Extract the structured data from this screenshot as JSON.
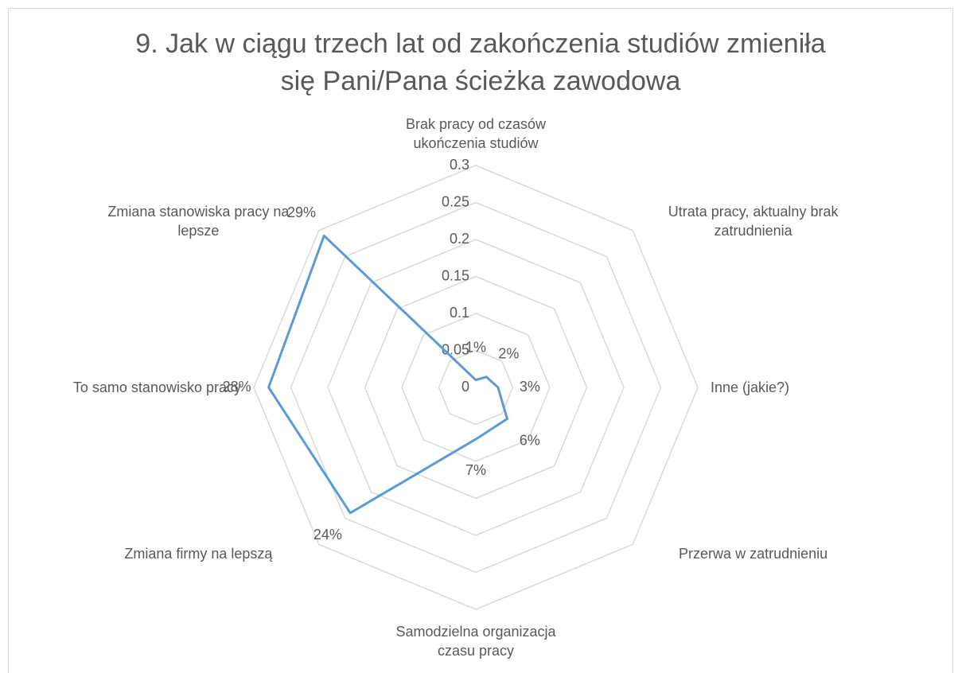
{
  "chart_data": {
    "type": "radar",
    "title": "9. Jak w ciągu trzech lat od zakończenia studiów zmieniła się Pani/Pana ścieżka zawodowa",
    "categories": [
      "Brak pracy od czasów ukończenia studiów",
      "Utrata pracy, aktualny brak zatrudnienia",
      "Inne (jakie?)",
      "Przerwa w zatrudnieniu",
      "Samodzielna organizacja czasu pracy",
      "Zmiana firmy na lepszą",
      "To samo stanowisko pracy",
      "Zmiana stanowiska pracy na lepsze"
    ],
    "values": [
      0.01,
      0.02,
      0.03,
      0.06,
      0.07,
      0.24,
      0.28,
      0.29
    ],
    "value_labels": [
      "1%",
      "2%",
      "3%",
      "6%",
      "7%",
      "24%",
      "28%",
      "29%"
    ],
    "color": "#5b9bd5",
    "ylim": [
      0,
      0.3
    ],
    "yticks": [
      0,
      0.05,
      0.1,
      0.15,
      0.2,
      0.25,
      0.3
    ],
    "grid": true
  }
}
